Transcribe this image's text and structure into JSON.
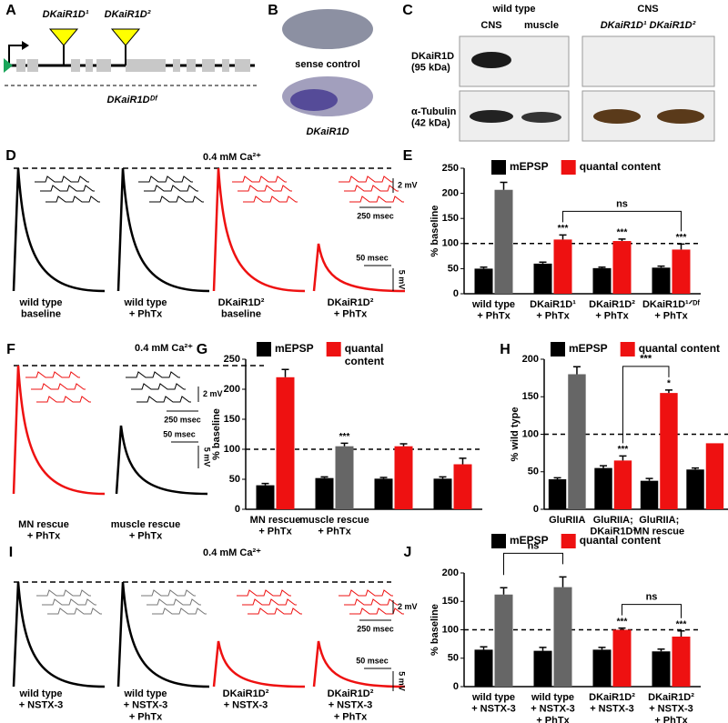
{
  "panel_letters": [
    "A",
    "B",
    "C",
    "D",
    "E",
    "F",
    "G",
    "H",
    "I",
    "J"
  ],
  "gene_diagram": {
    "alleles": [
      "DKaiR1D¹",
      "DKaiR1D²"
    ],
    "deficiency": "DKaiR1Dᴰᶠ"
  },
  "embryos": {
    "labels": [
      "sense control",
      "DKaiR1D"
    ]
  },
  "western_blot": {
    "groups": [
      "wild type",
      "CNS"
    ],
    "lanes": [
      "CNS",
      "muscle",
      "DKaiR1D¹ DKaiR1D²"
    ],
    "rows": [
      "DKaiR1D\n(95 kDa)",
      "α-Tubulin\n(42 kDa)"
    ]
  },
  "traces": [
    {
      "condition": "0.4 mM Ca²⁺",
      "labels": [
        "wild type\nbaseline",
        "wild type\n+ PhTx",
        "DKaiR1D²\nbaseline",
        "DKaiR1D²\n+ PhTx"
      ],
      "label_colors": [
        "#000000",
        "#000000",
        "#ee1111",
        "#ee1111"
      ],
      "scale_bars": [
        "2 mV",
        "250 msec",
        "50 msec",
        "5 mV"
      ]
    },
    {
      "condition": "0.4 mM Ca²⁺",
      "labels": [
        "MN rescue\n+ PhTx",
        "muscle rescue\n+ PhTx"
      ],
      "label_colors": [
        "#ee1111",
        "#000000"
      ],
      "scale_bars": [
        "2 mV",
        "250 msec",
        "50 msec",
        "5 mV"
      ]
    },
    {
      "condition": "0.4 mM Ca²⁺",
      "labels": [
        "wild type\n+ NSTX-3",
        "wild type\n+ NSTX-3\n+ PhTx",
        "DKaiR1D²\n+ NSTX-3",
        "DKaiR1D²\n+ NSTX-3\n+ PhTx"
      ],
      "label_colors": [
        "#000000",
        "#000000",
        "#ee1111",
        "#ee1111"
      ],
      "scale_bars": [
        "2 mV",
        "250 msec",
        "50 msec",
        "5 mV"
      ]
    }
  ],
  "chart_data": [
    {
      "type": "bar",
      "y_label": "% baseline",
      "categories": [
        "wild type\n+ PhTx",
        "DKaiR1D¹\n+ PhTx",
        "DKaiR1D²\n+ PhTx",
        "DKaiR1D¹ᐟᴰᶠ\n+ PhTx"
      ],
      "label_colors": [
        "#000000",
        "#ee1111",
        "#ee1111",
        "#ee1111"
      ],
      "series": [
        {
          "name": "mEPSP",
          "color": "#000000",
          "values": [
            50,
            60,
            51,
            52
          ],
          "errors": [
            3,
            3,
            2,
            3
          ]
        },
        {
          "name": "quantal content",
          "color": "#ee1111",
          "colors": [
            "#666666",
            "#ee1111",
            "#ee1111",
            "#ee1111"
          ],
          "values": [
            207,
            108,
            105,
            88
          ],
          "errors": [
            15,
            9,
            4,
            11
          ],
          "annotations": [
            null,
            "***",
            "***",
            "***"
          ]
        }
      ],
      "brackets": [
        {
          "label": "ns",
          "between": [
            1,
            3
          ]
        }
      ],
      "reference_line": 100,
      "ylim": [
        0,
        250
      ],
      "yticks": [
        0,
        50,
        100,
        150,
        200,
        250
      ]
    },
    {
      "type": "bar",
      "y_label": "% baseline",
      "categories": [
        "MN rescue\n+ PhTx",
        "muscle rescue\n+ PhTx",
        null,
        null
      ],
      "label_colors": [
        "#ee1111",
        "#000000",
        "#000000",
        "#000000"
      ],
      "series": [
        {
          "name": "mEPSP",
          "color": "#000000",
          "values": [
            40,
            52,
            51,
            51
          ],
          "errors": [
            3,
            2,
            2,
            3
          ]
        },
        {
          "name": "quantal\ncontent",
          "color": "#ee1111",
          "colors": [
            "#ee1111",
            "#666666",
            "#ee1111",
            "#ee1111"
          ],
          "values": [
            220,
            105,
            105,
            75
          ],
          "errors": [
            13,
            5,
            4,
            10
          ],
          "annotations": [
            null,
            "***",
            null,
            null
          ]
        }
      ],
      "brackets": [],
      "reference_line": 100,
      "ylim": [
        0,
        250
      ],
      "yticks": [
        0,
        50,
        100,
        150,
        200,
        250
      ]
    },
    {
      "type": "bar",
      "y_label": "% wild type",
      "categories": [
        "GluRIIA",
        "GluRIIA;\nDKaiR1D²",
        "GluRIIA;\nMN rescue",
        null
      ],
      "label_colors": [
        "#000000",
        "#ee1111",
        "#ee1111",
        "#000000"
      ],
      "series": [
        {
          "name": "mEPSP",
          "color": "#000000",
          "values": [
            40,
            55,
            38,
            53
          ],
          "errors": [
            2,
            3,
            3,
            2
          ]
        },
        {
          "name": "quantal content",
          "color": "#ee1111",
          "colors": [
            "#666666",
            "#ee1111",
            "#ee1111",
            "#ee1111"
          ],
          "values": [
            180,
            65,
            155,
            88
          ],
          "errors": [
            10,
            6,
            4,
            null
          ],
          "annotations": [
            null,
            "***",
            "*",
            null
          ]
        }
      ],
      "brackets": [
        {
          "label": "***",
          "between": [
            1,
            2
          ]
        }
      ],
      "reference_line": 100,
      "ylim": [
        0,
        200
      ],
      "yticks": [
        0,
        50,
        100,
        150,
        200
      ]
    },
    {
      "type": "bar",
      "y_label": "% baseline",
      "categories": [
        "wild type\n+ NSTX-3",
        "wild type\n+ NSTX-3\n+ PhTx",
        "DKaiR1D²\n+ NSTX-3",
        "DKaiR1D²\n+ NSTX-3\n+ PhTx"
      ],
      "label_colors": [
        "#000000",
        "#000000",
        "#ee1111",
        "#ee1111"
      ],
      "series": [
        {
          "name": "mEPSP",
          "color": "#000000",
          "values": [
            65,
            63,
            65,
            62
          ],
          "errors": [
            5,
            6,
            4,
            4
          ]
        },
        {
          "name": "quantal content",
          "color": "#ee1111",
          "colors": [
            "#666666",
            "#666666",
            "#ee1111",
            "#ee1111"
          ],
          "values": [
            162,
            175,
            100,
            88
          ],
          "errors": [
            12,
            18,
            3,
            10
          ],
          "annotations": [
            null,
            null,
            "***",
            "***"
          ]
        }
      ],
      "brackets": [
        {
          "label": "ns",
          "between": [
            0,
            1
          ]
        },
        {
          "label": "ns",
          "between": [
            2,
            3
          ]
        }
      ],
      "reference_line": 100,
      "ylim": [
        0,
        200
      ],
      "yticks": [
        0,
        50,
        100,
        150,
        200
      ]
    }
  ]
}
